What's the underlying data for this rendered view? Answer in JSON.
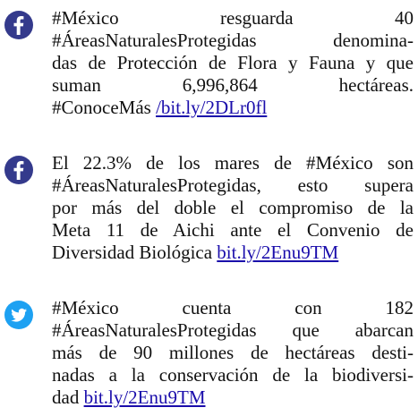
{
  "posts": [
    {
      "icon": "facebook",
      "lines": [
        "#México resguarda 40",
        "#ÁreasNaturalesProtegidas denomina-",
        "das de Protección de Flora y Fauna y que",
        "suman 6,996,864 hectáreas."
      ],
      "last_text": "#ConoceMás",
      "link": "/bit.ly/2DLr0fl"
    },
    {
      "icon": "facebook",
      "lines": [
        "El 22.3% de los mares de #México son",
        "#ÁreasNaturalesProtegidas, esto supera",
        "por más del doble el compromiso de la",
        "Meta 11 de Aichi ante el Convenio de"
      ],
      "last_text": "Diversidad Biológica",
      "link": "bit.ly/2Enu9TM"
    },
    {
      "icon": "twitter",
      "lines": [
        "#México cuenta con 182",
        "#ÁreasNaturalesProtegidas que abarcan",
        "más de 90 millones de hectáreas desti-",
        "nadas a la conservación de la biodiversi-"
      ],
      "last_text": "dad",
      "link": "bit.ly/2Enu9TM"
    }
  ]
}
